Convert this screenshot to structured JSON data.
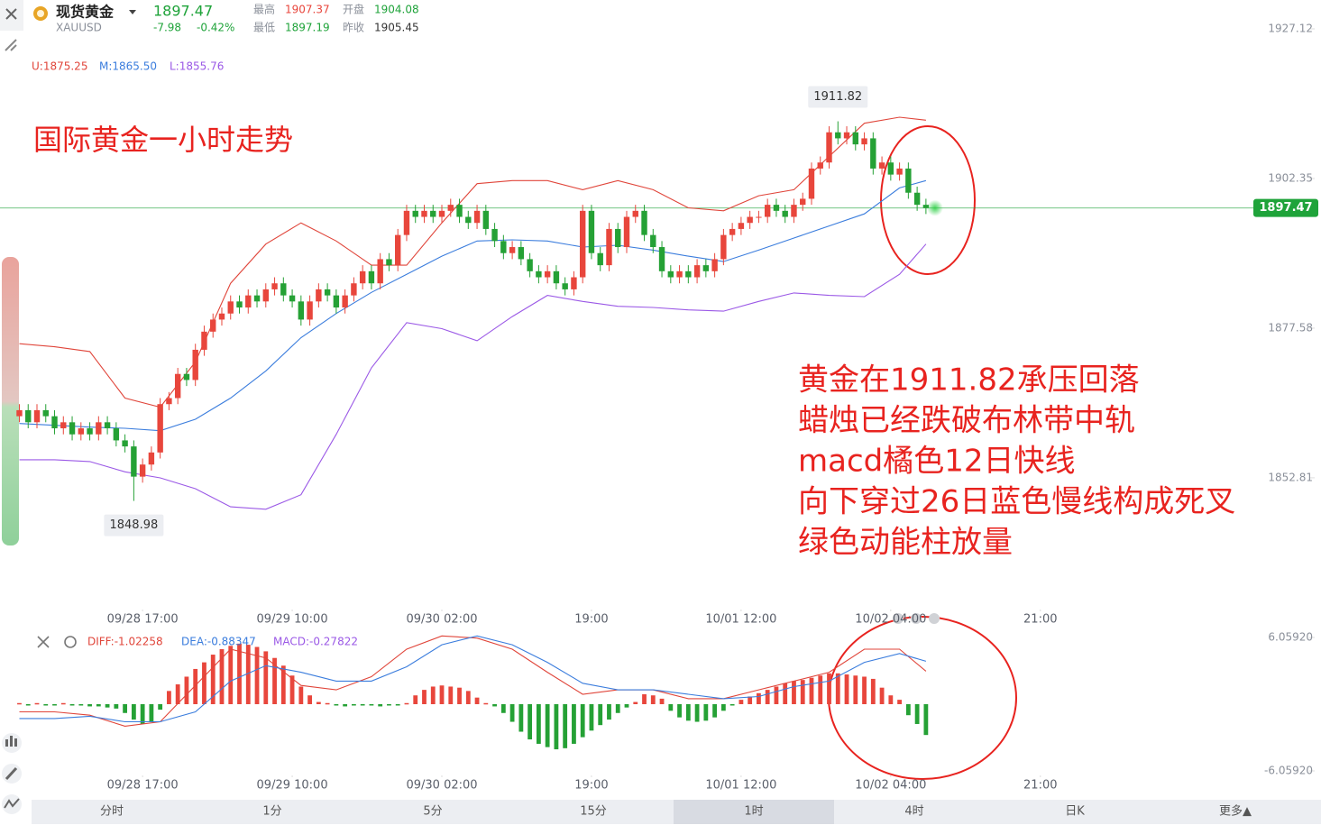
{
  "header": {
    "name": "现货黄金",
    "symbol": "XAUUSD",
    "price": "1897.47",
    "change": "-7.98",
    "change_pct": "-0.42%",
    "high_label": "最高",
    "high": "1907.37",
    "open_label": "开盘",
    "open": "1904.08",
    "low_label": "最低",
    "low": "1897.19",
    "prev_label": "昨收",
    "prev": "1905.45"
  },
  "chart_data": [
    {
      "type": "candlestick",
      "title": "国际黄金一小时走势",
      "notes": [
        "黄金在1911.82承压回落",
        "蜡烛已经跌破布林带中轨",
        "macd橘色12日快线",
        "向下穿过26日蓝色慢线构成死叉",
        "绿色动能柱放量"
      ],
      "colors": {
        "up": "#e8463c",
        "down": "#25a135"
      },
      "open": [
        1863,
        1864,
        1862,
        1864,
        1863,
        1861,
        1862,
        1860,
        1861,
        1860,
        1862,
        1861,
        1859,
        1858,
        1853,
        1855,
        1857,
        1865,
        1866,
        1870,
        1869,
        1874,
        1877,
        1879,
        1880,
        1882,
        1881,
        1883,
        1882,
        1884,
        1885,
        1883,
        1882,
        1879,
        1882,
        1884,
        1883,
        1881,
        1883,
        1885,
        1887,
        1885,
        1889,
        1888,
        1893,
        1897,
        1896,
        1897,
        1896,
        1897,
        1898,
        1896,
        1895,
        1897,
        1894,
        1892,
        1890,
        1891,
        1889,
        1887,
        1886,
        1887,
        1885,
        1884,
        1886,
        1897,
        1890,
        1888,
        1894,
        1891,
        1896,
        1897,
        1893,
        1891,
        1887,
        1886,
        1887,
        1886,
        1888,
        1887,
        1889,
        1893,
        1894,
        1895,
        1896,
        1896,
        1898,
        1897,
        1896,
        1898,
        1899,
        1904,
        1905,
        1910,
        1909,
        1910,
        1908,
        1909,
        1904,
        1905,
        1903,
        1904,
        1900,
        1898
      ],
      "high": [
        1865,
        1865,
        1865,
        1865,
        1864,
        1863,
        1863,
        1862,
        1862,
        1863,
        1863,
        1862,
        1860,
        1859,
        1856,
        1858,
        1866,
        1867,
        1871,
        1871,
        1875,
        1878,
        1880,
        1881,
        1883,
        1883,
        1884,
        1884,
        1885,
        1886,
        1886,
        1884,
        1883,
        1883,
        1885,
        1885,
        1884,
        1884,
        1886,
        1888,
        1888,
        1890,
        1890,
        1894,
        1898,
        1898,
        1898,
        1898,
        1898,
        1899,
        1899,
        1897,
        1898,
        1898,
        1895,
        1893,
        1892,
        1892,
        1890,
        1888,
        1888,
        1888,
        1886,
        1887,
        1898,
        1898,
        1891,
        1895,
        1895,
        1897,
        1898,
        1898,
        1894,
        1892,
        1888,
        1888,
        1888,
        1889,
        1889,
        1890,
        1894,
        1895,
        1896,
        1897,
        1897,
        1899,
        1899,
        1898,
        1899,
        1900,
        1905,
        1906,
        1911,
        1911.82,
        1911,
        1911,
        1910,
        1910,
        1906,
        1906,
        1905,
        1905,
        1901,
        1899
      ],
      "low": [
        1862,
        1861,
        1861,
        1862,
        1860,
        1860,
        1859,
        1859,
        1859,
        1859,
        1860,
        1858,
        1857,
        1848.98,
        1852,
        1854,
        1856,
        1864,
        1865,
        1868,
        1868,
        1873,
        1876,
        1878,
        1879,
        1880,
        1880,
        1881,
        1881,
        1883,
        1882,
        1881,
        1878,
        1878,
        1881,
        1882,
        1880,
        1880,
        1882,
        1884,
        1884,
        1884,
        1887,
        1887,
        1892,
        1895,
        1895,
        1895,
        1895,
        1896,
        1895,
        1894,
        1894,
        1893,
        1891,
        1889,
        1889,
        1888,
        1886,
        1885,
        1885,
        1884,
        1883,
        1883,
        1885,
        1889,
        1887,
        1887,
        1890,
        1890,
        1895,
        1892,
        1890,
        1886,
        1885,
        1885,
        1885,
        1885,
        1886,
        1886,
        1888,
        1892,
        1893,
        1894,
        1895,
        1895,
        1896,
        1895,
        1895,
        1897,
        1898,
        1903,
        1904,
        1908,
        1908,
        1907,
        1907,
        1903,
        1903,
        1902,
        1902,
        1899,
        1897,
        1896.47
      ],
      "close": [
        1864,
        1862,
        1864,
        1863,
        1861,
        1862,
        1860,
        1861,
        1860,
        1862,
        1861,
        1859,
        1858,
        1853,
        1855,
        1857,
        1865,
        1866,
        1870,
        1869,
        1874,
        1877,
        1879,
        1880,
        1882,
        1881,
        1883,
        1882,
        1884,
        1885,
        1883,
        1882,
        1879,
        1882,
        1884,
        1883,
        1881,
        1883,
        1885,
        1887,
        1885,
        1889,
        1888,
        1893,
        1897,
        1896,
        1897,
        1896,
        1897,
        1898,
        1896,
        1895,
        1897,
        1894,
        1892,
        1890,
        1891,
        1889,
        1887,
        1886,
        1887,
        1885,
        1884,
        1886,
        1897,
        1890,
        1888,
        1894,
        1891,
        1896,
        1897,
        1893,
        1891,
        1887,
        1886,
        1887,
        1886,
        1888,
        1887,
        1889,
        1893,
        1894,
        1895,
        1896,
        1896,
        1898,
        1897,
        1896,
        1898,
        1899,
        1904,
        1905,
        1910,
        1909,
        1910,
        1908,
        1909,
        1904,
        1905,
        1903,
        1904,
        1900,
        1898,
        1897.47
      ],
      "overlay_x": [
        0,
        4,
        8,
        12,
        16,
        20,
        24,
        28,
        32,
        36,
        40,
        44,
        48,
        52,
        56,
        60,
        64,
        68,
        72,
        76,
        80,
        84,
        88,
        92,
        96,
        100,
        103
      ],
      "overlays": [
        {
          "legend": "U:1875.25",
          "color": "#e0453a",
          "values": [
            1875,
            1874.5,
            1873.7,
            1866,
            1864.5,
            1872,
            1885,
            1891.5,
            1895,
            1892,
            1888,
            1888,
            1895,
            1901.5,
            1902,
            1902,
            1900.5,
            1902,
            1900.5,
            1897.5,
            1897,
            1899.5,
            1900.5,
            1906,
            1911.5,
            1912.5,
            1912
          ]
        },
        {
          "legend": "M:1865.50",
          "color": "#3b7ddd",
          "values": [
            1861.8,
            1861.5,
            1861.2,
            1861,
            1860.6,
            1862.5,
            1866,
            1870.5,
            1876,
            1880,
            1883.5,
            1886.5,
            1889.5,
            1892,
            1892.2,
            1892,
            1891,
            1891.3,
            1890.5,
            1889.5,
            1888.6,
            1890.5,
            1892.5,
            1894.5,
            1896.5,
            1900.8,
            1902
          ]
        },
        {
          "legend": "L:1855.76",
          "color": "#9b59e6",
          "values": [
            1855.8,
            1855.8,
            1855.5,
            1853.8,
            1852.8,
            1851,
            1848,
            1847.6,
            1850,
            1860,
            1871,
            1878.5,
            1877.5,
            1875.5,
            1879.5,
            1883,
            1882,
            1881.2,
            1881,
            1880.6,
            1880.4,
            1882,
            1883.4,
            1883,
            1882.8,
            1886.5,
            1891.5
          ]
        }
      ],
      "last_price": 1897.47,
      "last_price_color": "#1fa33a",
      "xlim": [
        -2.2,
        140.2
      ],
      "xticks": [
        {
          "value": 14,
          "label": "09/28 17:00"
        },
        {
          "value": 31,
          "label": "09/29 10:00"
        },
        {
          "value": 48,
          "label": "09/30 02:00"
        },
        {
          "value": 65,
          "label": "19:00"
        },
        {
          "value": 82,
          "label": "10/01 12:00"
        },
        {
          "value": 99,
          "label": "10/02 04:00"
        },
        {
          "value": 116,
          "label": "21:00"
        }
      ],
      "ylim": [
        1831.9,
        1931.9
      ],
      "yticks": [
        1927.12,
        1902.35,
        1877.58,
        1852.81
      ]
    },
    {
      "type": "macd",
      "colors": {
        "up": "#e8463c",
        "down": "#25a135"
      },
      "histogram_legend": "MACD:-0.27822",
      "histogram_legend_color": "#9b59e6",
      "histogram": [
        0.1,
        -0.1,
        0.1,
        -0.1,
        -0.1,
        0.1,
        -0.1,
        -0.1,
        -0.2,
        -0.2,
        -0.3,
        -0.4,
        -0.8,
        -1.4,
        -1.8,
        -1.6,
        -0.5,
        1.2,
        1.8,
        2.5,
        3.2,
        3.8,
        4.5,
        5.0,
        5.3,
        5.5,
        5.4,
        5.2,
        4.8,
        4.2,
        3.5,
        2.6,
        1.6,
        0.8,
        0.2,
        0.1,
        -0.1,
        -0.2,
        -0.1,
        -0.1,
        -0.1,
        -0.2,
        -0.1,
        -0.1,
        0.1,
        0.8,
        1.3,
        1.6,
        1.7,
        1.6,
        1.5,
        1.2,
        0.6,
        0.1,
        -0.2,
        -0.8,
        -1.6,
        -2.5,
        -3.2,
        -3.6,
        -3.9,
        -4.1,
        -4.0,
        -3.6,
        -3.0,
        -2.4,
        -1.9,
        -1.4,
        -0.8,
        -0.3,
        0.2,
        0.9,
        0.8,
        0.5,
        -0.6,
        -1.2,
        -1.5,
        -1.6,
        -1.5,
        -1.2,
        -0.6,
        -0.1,
        0.4,
        0.7,
        1.0,
        1.3,
        1.6,
        1.9,
        2.1,
        2.2,
        2.4,
        2.6,
        2.8,
        2.8,
        2.7,
        2.6,
        2.5,
        2.3,
        1.5,
        0.8,
        0.4,
        -1.0,
        -1.8,
        -2.8
      ],
      "lines": [
        {
          "legend": "DIFF:-1.02258",
          "color": "#e0453a",
          "values": [
            -0.7,
            -0.7,
            -1.0,
            -2.0,
            -1.6,
            1.7,
            5.0,
            4.2,
            1.7,
            1.3,
            2.5,
            5.0,
            6.2,
            6.0,
            5.0,
            2.9,
            0.9,
            1.3,
            1.3,
            0.5,
            0.5,
            1.3,
            2.1,
            2.9,
            5.0,
            5.0,
            3.0
          ]
        },
        {
          "legend": "DEA:-0.88347",
          "color": "#3b7ddd",
          "values": [
            -1.3,
            -1.3,
            -1.1,
            -1.6,
            -1.6,
            -0.7,
            2.1,
            3.5,
            2.9,
            2.1,
            2.1,
            3.4,
            5.4,
            6.2,
            5.4,
            3.8,
            1.9,
            1.3,
            1.3,
            0.9,
            0.5,
            0.7,
            1.6,
            2.1,
            3.8,
            4.6,
            3.9
          ]
        }
      ],
      "ylim": [
        -6.88,
        6.88
      ],
      "yticks": [
        {
          "value": 6.0592,
          "label": "6.05920"
        },
        {
          "value": -6.0592,
          "label": "-6.05920"
        }
      ]
    }
  ],
  "tabs": [
    "分时",
    "1分",
    "5分",
    "15分",
    "1时",
    "4时",
    "日K",
    "更多▲"
  ],
  "selected_tab": 4
}
